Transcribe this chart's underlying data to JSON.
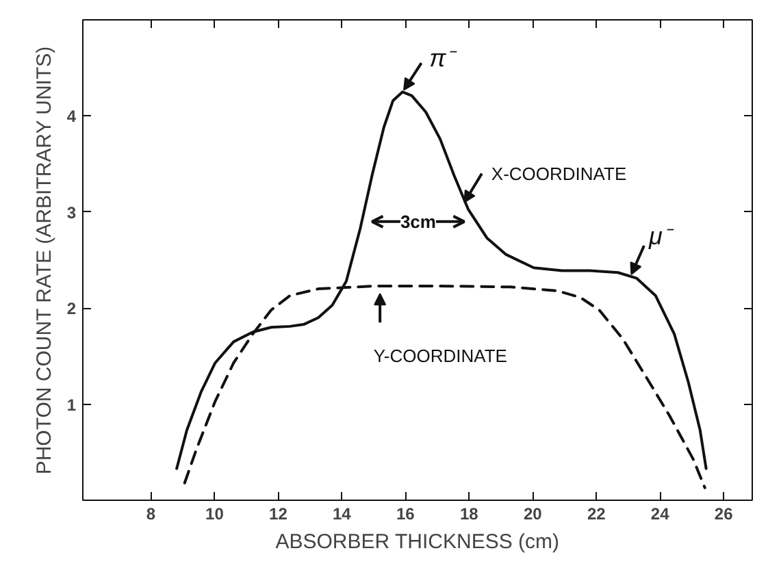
{
  "chart_data": {
    "type": "line",
    "xlabel": "ABSORBER THICKNESS (cm)",
    "ylabel": "PHOTON COUNT RATE (ARBITRARY UNITS)",
    "xlim": [
      5.86,
      26.9
    ],
    "ylim": [
      0,
      5
    ],
    "xticks": [
      8,
      10,
      12,
      14,
      16,
      18,
      20,
      22,
      24,
      26
    ],
    "yticks": [
      1,
      2,
      3,
      4
    ],
    "grid": false,
    "marker": "none",
    "series": [
      {
        "color": "#111111",
        "line_style": "solid",
        "x": [
          8.81,
          9.13,
          9.58,
          10.02,
          10.6,
          11.2,
          11.78,
          12.37,
          12.8,
          13.26,
          13.7,
          14.14,
          14.58,
          14.95,
          15.32,
          15.61,
          15.91,
          16.2,
          16.64,
          17.09,
          17.53,
          17.97,
          18.56,
          19.15,
          20.03,
          20.92,
          21.8,
          22.68,
          23.27,
          23.86,
          24.45,
          24.89,
          25.26,
          25.45
        ],
        "values": [
          0.33,
          0.73,
          1.13,
          1.43,
          1.65,
          1.75,
          1.8,
          1.81,
          1.83,
          1.9,
          2.03,
          2.28,
          2.83,
          3.38,
          3.88,
          4.16,
          4.25,
          4.21,
          4.04,
          3.76,
          3.38,
          3.03,
          2.73,
          2.56,
          2.42,
          2.39,
          2.39,
          2.37,
          2.31,
          2.13,
          1.73,
          1.23,
          0.73,
          0.33
        ]
      },
      {
        "color": "#111111",
        "line_style": "dashed",
        "x": [
          9.06,
          9.43,
          10.02,
          10.6,
          11.2,
          11.78,
          12.37,
          13.26,
          15.03,
          17.09,
          19.3,
          20.77,
          21.5,
          22.09,
          22.83,
          23.57,
          24.3,
          25.04,
          25.41
        ],
        "values": [
          0.18,
          0.53,
          1.03,
          1.43,
          1.73,
          1.98,
          2.13,
          2.2,
          2.23,
          2.23,
          2.22,
          2.18,
          2.11,
          1.98,
          1.68,
          1.28,
          0.88,
          0.43,
          0.13
        ]
      }
    ],
    "annotations": [
      {
        "text": "π⁻",
        "x": 15.95,
        "y": 4.27
      },
      {
        "text": "X-COORDINATE",
        "x": 17.85,
        "y": 3.1
      },
      "3cm",
      {
        "text": "μ⁻",
        "x": 23.1,
        "y": 2.35
      },
      "Y-COORDINATE"
    ]
  }
}
